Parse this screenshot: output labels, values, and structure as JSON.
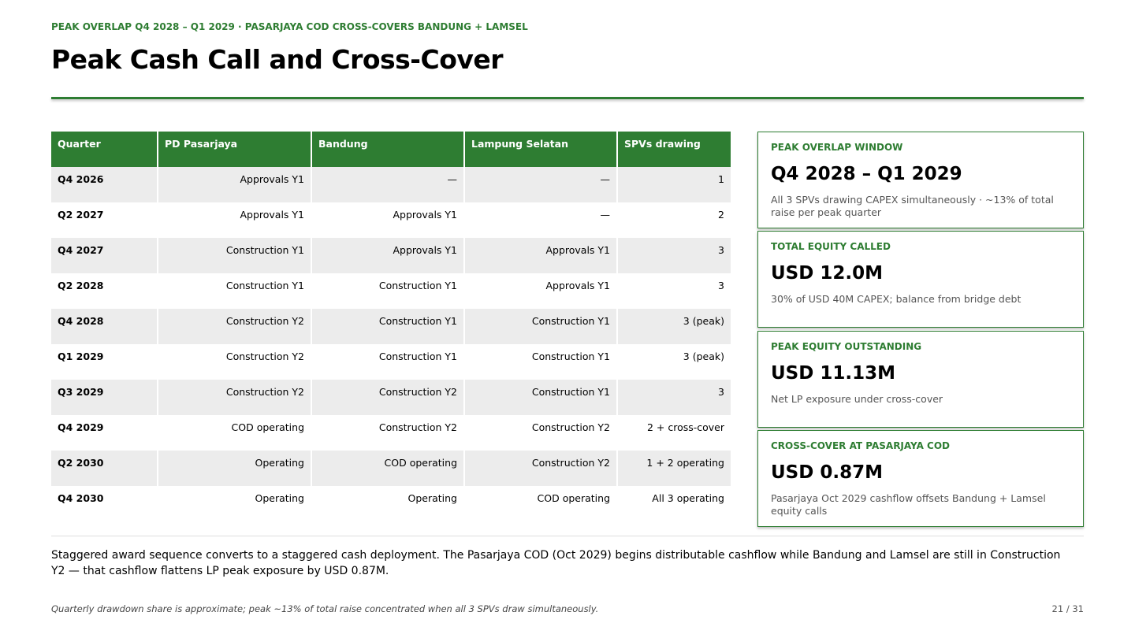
{
  "header": {
    "kicker": "PEAK OVERLAP Q4 2028 – Q1 2029 · PASARJAYA COD CROSS-COVERS BANDUNG + LAMSEL",
    "title": "Peak Cash Call and Cross-Cover"
  },
  "table": {
    "columns": [
      "Quarter",
      "PD Pasarjaya",
      "Bandung",
      "Lampung Selatan",
      "SPVs drawing"
    ],
    "rows": [
      [
        "Q4 2026",
        "Approvals Y1",
        "—",
        "—",
        "1"
      ],
      [
        "Q2 2027",
        "Approvals Y1",
        "Approvals Y1",
        "—",
        "2"
      ],
      [
        "Q4 2027",
        "Construction Y1",
        "Approvals Y1",
        "Approvals Y1",
        "3"
      ],
      [
        "Q2 2028",
        "Construction Y1",
        "Construction Y1",
        "Approvals Y1",
        "3"
      ],
      [
        "Q4 2028",
        "Construction Y2",
        "Construction Y1",
        "Construction Y1",
        "3 (peak)"
      ],
      [
        "Q1 2029",
        "Construction Y2",
        "Construction Y1",
        "Construction Y1",
        "3 (peak)"
      ],
      [
        "Q3 2029",
        "Construction Y2",
        "Construction Y2",
        "Construction Y1",
        "3"
      ],
      [
        "Q4 2029",
        "COD operating",
        "Construction Y2",
        "Construction Y2",
        "2 + cross-cover"
      ],
      [
        "Q2 2030",
        "Operating",
        "COD operating",
        "Construction Y2",
        "1 + 2 operating"
      ],
      [
        "Q4 2030",
        "Operating",
        "Operating",
        "COD operating",
        "All 3 operating"
      ]
    ]
  },
  "cards": [
    {
      "label": "PEAK OVERLAP WINDOW",
      "value": "Q4 2028 – Q1 2029",
      "note": "All 3 SPVs drawing CAPEX simultaneously · ~13% of total raise per peak quarter"
    },
    {
      "label": "TOTAL EQUITY CALLED",
      "value": "USD 12.0M",
      "note": "30% of USD 40M CAPEX; balance from bridge debt"
    },
    {
      "label": "PEAK EQUITY OUTSTANDING",
      "value": "USD 11.13M",
      "note": "Net LP exposure under cross-cover"
    },
    {
      "label": "CROSS-COVER AT PASARJAYA COD",
      "value": "USD 0.87M",
      "note": "Pasarjaya Oct 2029 cashflow offsets Bandung + Lamsel equity calls"
    }
  ],
  "body": "Staggered award sequence converts to a staggered cash deployment. The Pasarjaya COD (Oct 2029) begins distributable cashflow while Bandung and Lamsel are still in Construction Y2 — that cashflow flattens LP peak exposure by USD 0.87M.",
  "footer": {
    "note": "Quarterly drawdown share is approximate; peak ~13% of total raise concentrated when all 3 SPVs draw simultaneously.",
    "page": "21 / 31"
  }
}
